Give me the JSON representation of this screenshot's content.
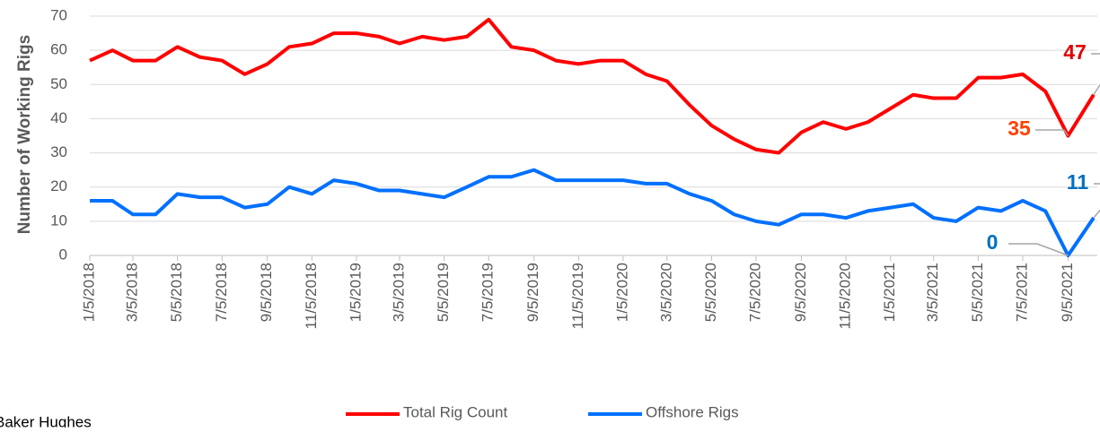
{
  "chart_data": {
    "type": "line",
    "y_label": "Number of Working Rigs",
    "source": "Baker Hughes",
    "x": [
      "1/5/2018",
      "2/5/2018",
      "3/5/2018",
      "4/5/2018",
      "5/5/2018",
      "6/5/2018",
      "7/5/2018",
      "8/5/2018",
      "9/5/2018",
      "10/5/2018",
      "11/5/2018",
      "12/5/2018",
      "1/5/2019",
      "2/5/2019",
      "3/5/2019",
      "4/5/2019",
      "5/5/2019",
      "6/5/2019",
      "7/5/2019",
      "8/5/2019",
      "9/5/2019",
      "10/5/2019",
      "11/5/2019",
      "12/5/2019",
      "1/5/2020",
      "2/5/2020",
      "3/5/2020",
      "4/5/2020",
      "5/5/2020",
      "6/5/2020",
      "7/5/2020",
      "8/5/2020",
      "9/5/2020",
      "10/5/2020",
      "11/5/2020",
      "12/5/2020",
      "1/5/2021",
      "2/5/2021",
      "3/5/2021",
      "4/5/2021",
      "5/5/2021",
      "6/5/2021",
      "7/5/2021",
      "8/5/2021",
      "9/5/2021",
      "10/10/2021"
    ],
    "series": [
      {
        "name": "Total Rig Count",
        "color": "#ff0000",
        "values": [
          57,
          60,
          57,
          57,
          61,
          58,
          57,
          53,
          56,
          61,
          62,
          65,
          65,
          64,
          62,
          64,
          63,
          64,
          69,
          61,
          60,
          57,
          56,
          57,
          57,
          53,
          51,
          44,
          38,
          34,
          31,
          30,
          36,
          39,
          37,
          39,
          43,
          47,
          46,
          46,
          52,
          52,
          53,
          48,
          35,
          47
        ]
      },
      {
        "name": "Offshore Rigs",
        "color": "#0070ff",
        "values": [
          16,
          16,
          12,
          12,
          18,
          17,
          17,
          14,
          15,
          20,
          18,
          22,
          21,
          19,
          19,
          18,
          17,
          20,
          23,
          23,
          25,
          22,
          22,
          22,
          22,
          21,
          21,
          18,
          16,
          12,
          10,
          9,
          12,
          12,
          11,
          13,
          14,
          15,
          11,
          10,
          14,
          13,
          16,
          13,
          0,
          11
        ]
      }
    ],
    "xlim": [
      "1/5/2018",
      "10/15/2021"
    ],
    "xticks": [
      "1/5/2018",
      "3/5/2018",
      "5/5/2018",
      "7/5/2018",
      "9/5/2018",
      "11/5/2018",
      "1/5/2019",
      "3/5/2019",
      "5/5/2019",
      "7/5/2019",
      "9/5/2019",
      "11/5/2019",
      "1/5/2020",
      "3/5/2020",
      "5/5/2020",
      "7/5/2020",
      "9/5/2020",
      "11/5/2020",
      "1/5/2021",
      "3/5/2021",
      "5/5/2021",
      "7/5/2021",
      "9/5/2021"
    ],
    "ylim": [
      0,
      70
    ],
    "yticks": [
      0,
      10,
      20,
      30,
      40,
      50,
      60,
      70
    ],
    "grid": true
  }
}
